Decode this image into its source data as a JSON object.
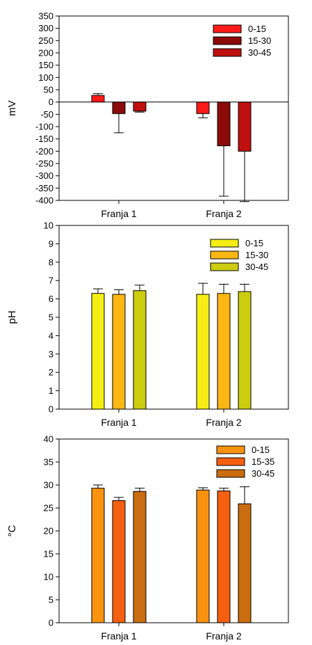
{
  "chart_data": [
    {
      "type": "bar",
      "ylabel": "mV",
      "ylim": [
        -400,
        350
      ],
      "yticks": [
        -400,
        -350,
        -300,
        -250,
        -200,
        -150,
        -100,
        -50,
        0,
        50,
        100,
        150,
        200,
        250,
        300,
        350
      ],
      "categories": [
        "Franja 1",
        "Franja 2"
      ],
      "zero_line": true,
      "legend_position": "top-right",
      "series": [
        {
          "name": "0-15",
          "color": "#ff1a1a",
          "values": [
            27,
            -47
          ],
          "errors": [
            7,
            17
          ]
        },
        {
          "name": "15-30",
          "color": "#8c0a0a",
          "values": [
            -47,
            -178
          ],
          "errors": [
            78,
            205
          ]
        },
        {
          "name": "30-45",
          "color": "#bf0f0f",
          "values": [
            -37,
            -200
          ],
          "errors": [
            4,
            205
          ]
        }
      ]
    },
    {
      "type": "bar",
      "ylabel": "pH",
      "ylim": [
        0,
        10
      ],
      "yticks": [
        0,
        1,
        2,
        3,
        4,
        5,
        6,
        7,
        8,
        9,
        10
      ],
      "categories": [
        "Franja 1",
        "Franja 2"
      ],
      "zero_line": false,
      "legend_position": "top-right",
      "series": [
        {
          "name": "0-15",
          "color": "#f5ee14",
          "values": [
            6.3,
            6.25
          ],
          "errors": [
            0.25,
            0.6
          ]
        },
        {
          "name": "15-30",
          "color": "#fbb714",
          "values": [
            6.25,
            6.3
          ],
          "errors": [
            0.25,
            0.5
          ]
        },
        {
          "name": "30-45",
          "color": "#cccc10",
          "values": [
            6.45,
            6.4
          ],
          "errors": [
            0.3,
            0.4
          ]
        }
      ]
    },
    {
      "type": "bar",
      "ylabel": "°C",
      "ylim": [
        0,
        40
      ],
      "yticks": [
        0,
        5,
        10,
        15,
        20,
        25,
        30,
        35,
        40
      ],
      "categories": [
        "Franja 1",
        "Franja 2"
      ],
      "zero_line": false,
      "legend_position": "top-right",
      "series": [
        {
          "name": "0-15",
          "color": "#f9920f",
          "values": [
            29.3,
            28.9
          ],
          "errors": [
            0.7,
            0.5
          ]
        },
        {
          "name": "15-35",
          "color": "#f55f10",
          "values": [
            26.6,
            28.7
          ],
          "errors": [
            0.7,
            0.6
          ]
        },
        {
          "name": "30-45",
          "color": "#c96d10",
          "values": [
            28.6,
            25.9
          ],
          "errors": [
            0.7,
            3.7
          ]
        }
      ]
    }
  ]
}
